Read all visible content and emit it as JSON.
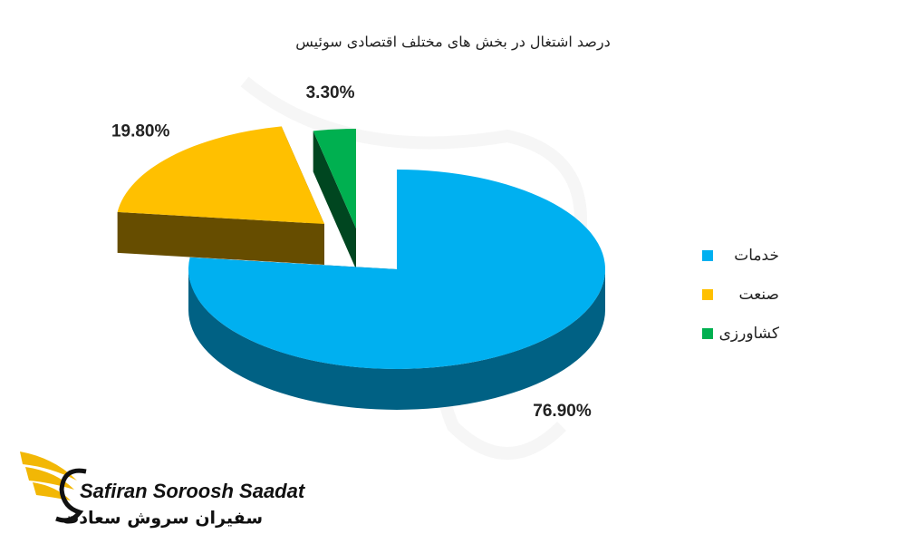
{
  "chart_data": {
    "type": "pie",
    "title": "درصد اشتغال در بخش های مختلف اقتصادی سوئیس",
    "categories": [
      "خدمات",
      "صنعت",
      "کشاورزی"
    ],
    "values": [
      76.9,
      19.8,
      3.3
    ],
    "value_labels": [
      "76.90%",
      "19.80%",
      "3.30%"
    ],
    "colors": [
      "#00b0f0",
      "#ffc000",
      "#00b050"
    ],
    "legend": "right"
  },
  "logo": {
    "name": "Safiran Soroosh Saadat",
    "name_fa": "سفیران سروش سعادت"
  }
}
